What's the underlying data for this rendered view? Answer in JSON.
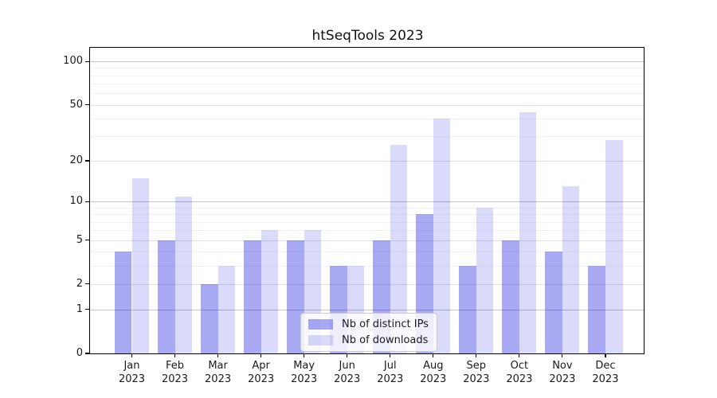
{
  "title": "htSeqTools 2023",
  "chart_data": {
    "type": "bar",
    "scale": "log1p",
    "title": "htSeqTools 2023",
    "xlabel": "",
    "ylabel": "",
    "categories": [
      "Jan 2023",
      "Feb 2023",
      "Mar 2023",
      "Apr 2023",
      "May 2023",
      "Jun 2023",
      "Jul 2023",
      "Aug 2023",
      "Sep 2023",
      "Oct 2023",
      "Nov 2023",
      "Dec 2023"
    ],
    "months": [
      "Jan",
      "Feb",
      "Mar",
      "Apr",
      "May",
      "Jun",
      "Jul",
      "Aug",
      "Sep",
      "Oct",
      "Nov",
      "Dec"
    ],
    "year": "2023",
    "series": [
      {
        "name": "Nb of distinct IPs",
        "color": "rgba(10,10,220,0.35)",
        "values": [
          4,
          5,
          2,
          5,
          5,
          3,
          5,
          8,
          3,
          5,
          4,
          3
        ]
      },
      {
        "name": "Nb of downloads",
        "color": "rgba(10,10,220,0.15)",
        "values": [
          15,
          11,
          3,
          6,
          6,
          3,
          26,
          40,
          9,
          44,
          13,
          28
        ]
      }
    ],
    "yticks": [
      0,
      1,
      2,
      5,
      10,
      20,
      50,
      100
    ],
    "ylim": [
      0,
      130
    ],
    "grid": "on",
    "grid_major_values": [
      1,
      10,
      100
    ],
    "grid_labeled_minor_values": [
      2,
      5,
      20,
      50
    ],
    "grid_minor_values": [
      3,
      4,
      6,
      7,
      8,
      9,
      30,
      40,
      60,
      70,
      80,
      90
    ],
    "legend_position": "lower center"
  },
  "colors": {
    "series_dark": "rgba(10,10,220,0.35)",
    "series_light": "rgba(10,10,220,0.15)",
    "grid_major": "#c4c4c4",
    "grid_labeled": "#e0e0e0",
    "grid_minor": "#f2f2f2",
    "axis": "#000000"
  }
}
